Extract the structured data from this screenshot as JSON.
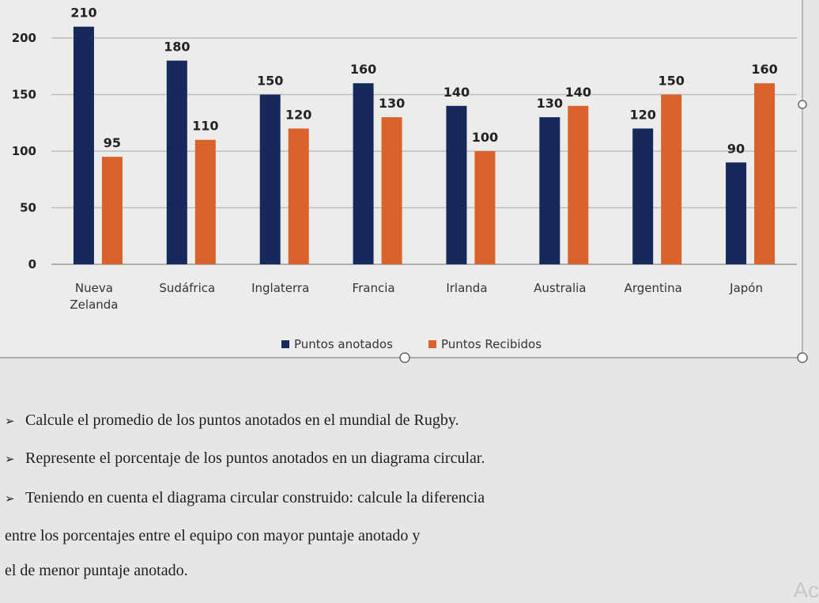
{
  "chart_data": {
    "type": "bar",
    "categories": [
      "Nueva Zelanda",
      "Sudáfrica",
      "Inglaterra",
      "Francia",
      "Irlanda",
      "Australia",
      "Argentina",
      "Japón"
    ],
    "series": [
      {
        "name": "Puntos anotados",
        "color": "#17285a",
        "values": [
          210,
          180,
          150,
          160,
          140,
          130,
          120,
          90
        ]
      },
      {
        "name": "Puntos Recibidos",
        "color": "#d9622b",
        "values": [
          95,
          110,
          120,
          130,
          100,
          140,
          150,
          160
        ]
      }
    ],
    "ylim": [
      0,
      210
    ],
    "yticks": [
      "0",
      "50",
      "100",
      "150",
      "200"
    ],
    "grid": true,
    "legend_position": "bottom",
    "data_labels": true
  },
  "questions": [
    {
      "bullet": "➢",
      "text": "Calcule el promedio de los puntos anotados en el mundial de Rugby."
    },
    {
      "bullet": "➢",
      "text": "Represente el porcentaje de los puntos anotados en un diagrama circular."
    },
    {
      "bullet": "➢",
      "text": "Teniendo en cuenta el diagrama circular construido: calcule la diferencia"
    },
    {
      "bullet": "",
      "text": "entre los porcentajes entre el equipo con mayor puntaje anotado y"
    },
    {
      "bullet": "",
      "text": "el de menor puntaje anotado."
    }
  ],
  "watermark": "Ac"
}
